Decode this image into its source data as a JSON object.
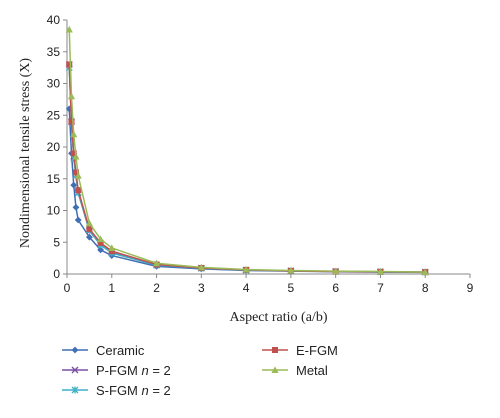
{
  "chart_data": {
    "type": "line",
    "title": "",
    "xlabel": "Aspect ratio (a/b)",
    "ylabel": "Nondimensional tensile stress (X)",
    "xlim": [
      0,
      9
    ],
    "ylim": [
      0,
      40
    ],
    "xticks": [
      0,
      1,
      2,
      3,
      4,
      5,
      6,
      7,
      8,
      9
    ],
    "yticks": [
      0,
      5,
      10,
      15,
      20,
      25,
      30,
      35,
      40
    ],
    "grid": false,
    "legend_position": "bottom",
    "x": [
      0.05,
      0.1,
      0.15,
      0.2,
      0.25,
      0.5,
      0.75,
      1,
      2,
      3,
      4,
      5,
      6,
      7,
      8
    ],
    "series": [
      {
        "name": "Ceramic",
        "display": [
          "Ceramic"
        ],
        "color": "#3f6fb5",
        "marker": "diamond",
        "values": [
          26,
          19,
          14,
          10.5,
          8.5,
          5.8,
          3.8,
          2.9,
          1.2,
          0.8,
          0.55,
          0.45,
          0.35,
          0.3,
          0.25
        ]
      },
      {
        "name": "P-FGM n = 2",
        "display": [
          "P-FGM ",
          "n",
          " = 2"
        ],
        "color": "#7b4fa6",
        "marker": "x",
        "values": [
          33,
          24,
          18.5,
          15.5,
          12.8,
          6.8,
          4.6,
          3.4,
          1.4,
          0.9,
          0.6,
          0.5,
          0.4,
          0.35,
          0.3
        ]
      },
      {
        "name": "S-FGM n = 2",
        "display": [
          "S-FGM ",
          "n",
          " = 2"
        ],
        "color": "#3fb0c6",
        "marker": "star",
        "values": [
          32.5,
          24,
          18.2,
          15.5,
          12.8,
          6.9,
          4.6,
          3.3,
          1.4,
          0.9,
          0.6,
          0.5,
          0.4,
          0.35,
          0.3
        ]
      },
      {
        "name": "E-FGM",
        "display": [
          "E-FGM"
        ],
        "color": "#c0504d",
        "marker": "square",
        "values": [
          33,
          24,
          19,
          16,
          13.2,
          7.1,
          4.9,
          3.6,
          1.5,
          0.95,
          0.65,
          0.5,
          0.4,
          0.35,
          0.3
        ]
      },
      {
        "name": "Metal",
        "display": [
          "Metal"
        ],
        "color": "#9bbb59",
        "marker": "triangle",
        "values": [
          38.5,
          28,
          22,
          18.5,
          15.5,
          8,
          5.5,
          4.1,
          1.7,
          1.05,
          0.7,
          0.55,
          0.45,
          0.4,
          0.3
        ]
      }
    ]
  }
}
